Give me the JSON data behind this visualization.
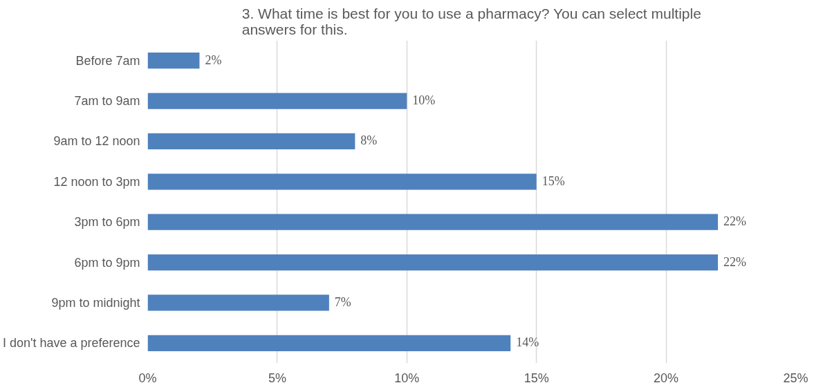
{
  "chart_data": {
    "type": "bar",
    "orientation": "horizontal",
    "title": "3. What time is best for you to use a pharmacy? You can select multiple answers for this.",
    "categories": [
      "Before 7am",
      "7am to 9am",
      "9am to 12 noon",
      "12 noon to 3pm",
      "3pm to 6pm",
      "6pm to 9pm",
      "9pm to midnight",
      "I don't have a preference"
    ],
    "values": [
      2,
      10,
      8,
      15,
      22,
      22,
      7,
      14
    ],
    "value_labels": [
      "2%",
      "10%",
      "8%",
      "15%",
      "22%",
      "22%",
      "7%",
      "14%"
    ],
    "color": "#4f81bd",
    "xlim": [
      0,
      25
    ],
    "xticks": [
      {
        "value": 0,
        "label": "0%"
      },
      {
        "value": 5,
        "label": "5%"
      },
      {
        "value": 10,
        "label": "10%"
      },
      {
        "value": 15,
        "label": "15%"
      },
      {
        "value": 20,
        "label": "20%"
      },
      {
        "value": 25,
        "label": "25%"
      }
    ],
    "grid": "x"
  }
}
